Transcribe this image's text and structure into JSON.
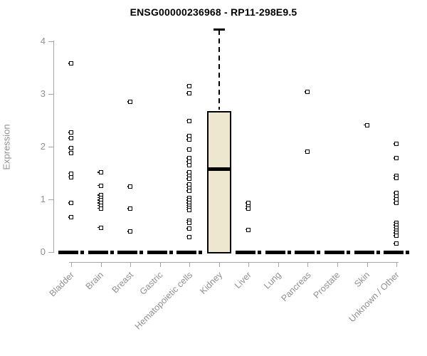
{
  "title": "ENSG00000236968 - RP11-298E9.5",
  "chart_data": {
    "type": "box",
    "title": "ENSG00000236968 - RP11-298E9.5",
    "ylabel": "Expression",
    "xlabel": "",
    "ylim": [
      0,
      4
    ],
    "ytick_labels": [
      "0",
      "1",
      "2",
      "3",
      "4"
    ],
    "yticks": [
      0,
      1,
      2,
      3,
      4
    ],
    "grid": false,
    "legend": "none",
    "colors": {
      "box_fill": "#ece7ce",
      "box_border": "#000000",
      "median": "#000000",
      "axis": "#a6a6a6",
      "tick_text": "#8f8f8f",
      "title_text": "#000000",
      "point": "#000000"
    },
    "categories": [
      "Bladder",
      "Brain",
      "Breast",
      "Gastric",
      "Hematopoietic cells",
      "Kidney",
      "Liver",
      "Lung",
      "Pancreas",
      "Prostate",
      "Skin",
      "Unknown / Other"
    ],
    "series": [
      {
        "name": "Bladder",
        "median": 0,
        "points": [
          3.58,
          2.27,
          2.16,
          1.97,
          1.88,
          1.49,
          1.42,
          0.93,
          0.66
        ]
      },
      {
        "name": "Brain",
        "median": 0,
        "points": [
          1.51,
          1.26,
          1.08,
          1.03,
          0.98,
          0.93,
          0.88,
          0.83,
          0.46
        ]
      },
      {
        "name": "Breast",
        "median": 0,
        "points": [
          2.85,
          1.24,
          0.82,
          0.39
        ]
      },
      {
        "name": "Gastric",
        "median": 0,
        "points": []
      },
      {
        "name": "Hematopoietic cells",
        "median": 0,
        "points": [
          3.15,
          3.01,
          2.49,
          2.2,
          2.13,
          1.95,
          1.78,
          1.71,
          1.65,
          1.51,
          1.45,
          1.39,
          1.28,
          1.22,
          1.16,
          1.03,
          0.98,
          0.93,
          0.88,
          0.84,
          0.8,
          0.6,
          0.56,
          0.44,
          0.29
        ]
      },
      {
        "name": "Kidney",
        "box": {
          "q1": 0,
          "median": 1.58,
          "q3": 2.68,
          "whisker_low": 0,
          "whisker_high": 4.22
        },
        "points": []
      },
      {
        "name": "Liver",
        "median": 0,
        "points": [
          0.93,
          0.87,
          0.82,
          0.42
        ]
      },
      {
        "name": "Lung",
        "median": 0,
        "points": []
      },
      {
        "name": "Pancreas",
        "median": 0,
        "points": [
          3.04,
          1.91
        ]
      },
      {
        "name": "Prostate",
        "median": 0,
        "points": []
      },
      {
        "name": "Skin",
        "median": 0,
        "points": [
          2.41
        ]
      },
      {
        "name": "Unknown / Other",
        "median": 0,
        "points": [
          2.05,
          1.78,
          1.45,
          1.4,
          1.12,
          1.06,
          1.0,
          0.93,
          0.56,
          0.51,
          0.46,
          0.41,
          0.36,
          0.31,
          0.16
        ]
      }
    ]
  }
}
